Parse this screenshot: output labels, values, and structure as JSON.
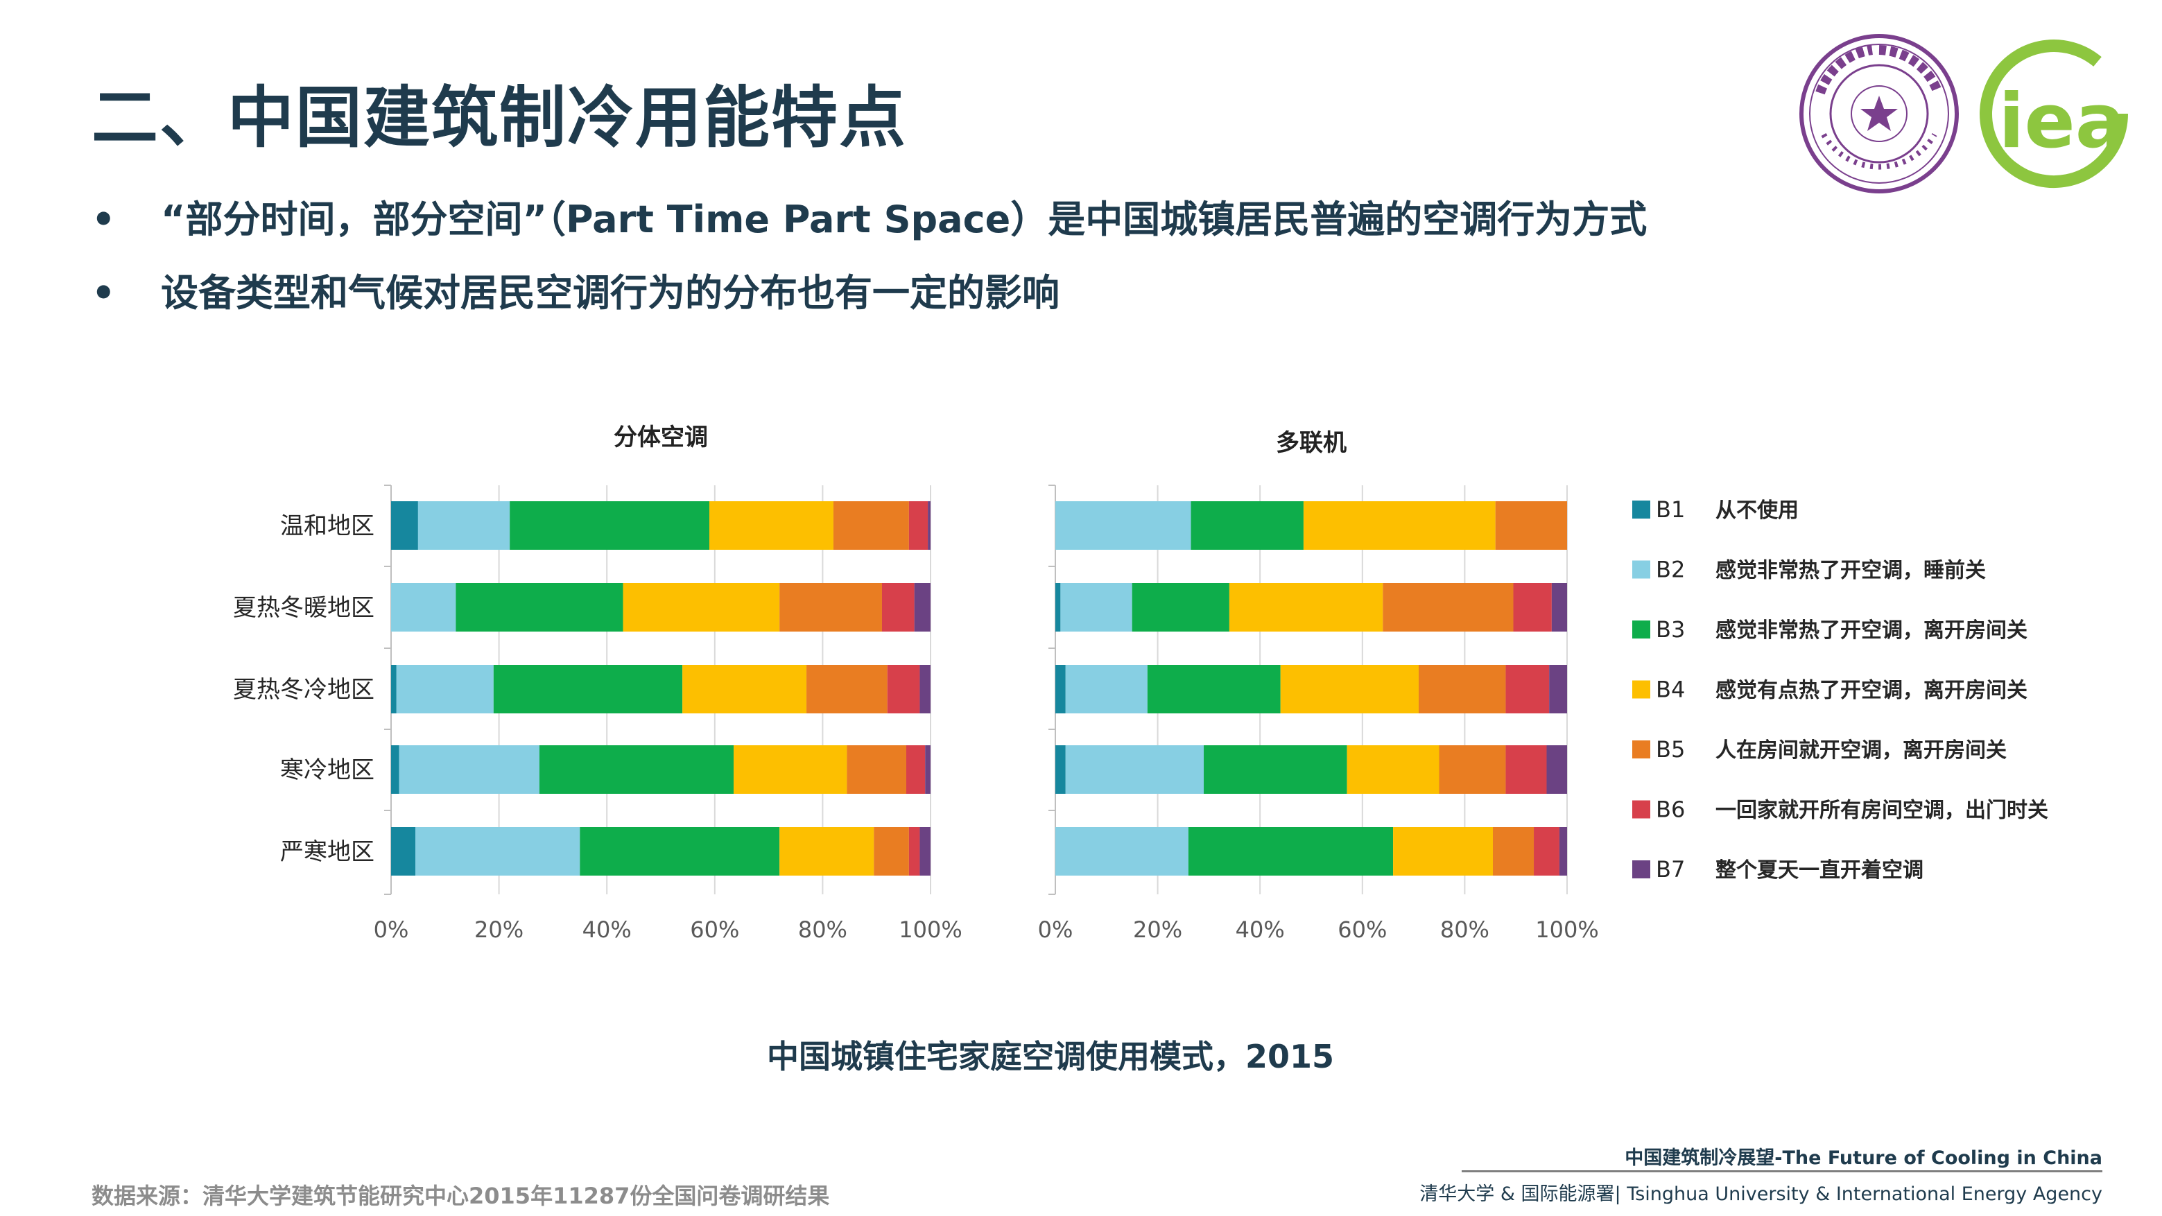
{
  "slide": {
    "title": "二、中国建筑制冷用能特点",
    "bullets": [
      "“部分时间，部分空间”（Part Time Part Space）是中国城镇居民普遍的空调行为方式",
      "设备类型和气候对居民空调行为的分布也有一定的影响"
    ],
    "bullet_symbol": "•",
    "caption": "中国城镇住宅家庭空调使用模式，2015",
    "source": "数据来源：清华大学建筑节能研究中心2015年11287份全国问卷调研结果",
    "footer_top": "中国建筑制冷展望-The Future of Cooling in China",
    "footer_bottom": "清华大学 & 国际能源署| Tsinghua University & International Energy Agency",
    "logo_right": "iea"
  },
  "colors": {
    "title": "#1f3b4d",
    "B1": "#16879e",
    "B2": "#87cfe3",
    "B3": "#0ead4b",
    "B4": "#fdbf00",
    "B5": "#e97d22",
    "B6": "#d7404b",
    "B7": "#6b4283",
    "tsinghua_purple": "#7a3f8d",
    "iea_green": "#8dc63f"
  },
  "chart_data": [
    {
      "type": "bar",
      "orientation": "horizontal-stacked-100",
      "title": "分体空调",
      "categories": [
        "温和地区",
        "夏热冬暖地区",
        "夏热冬冷地区",
        "寒冷地区",
        "严寒地区"
      ],
      "xlim": [
        0,
        100
      ],
      "xticks": [
        "0%",
        "20%",
        "40%",
        "60%",
        "80%",
        "100%"
      ],
      "series": [
        {
          "name": "B1",
          "values": [
            5,
            0,
            1,
            1.5,
            4.5
          ]
        },
        {
          "name": "B2",
          "values": [
            17,
            12,
            18,
            26,
            30.5
          ]
        },
        {
          "name": "B3",
          "values": [
            37,
            31,
            35,
            36,
            37
          ]
        },
        {
          "name": "B4",
          "values": [
            23,
            29,
            23,
            21,
            17.5
          ]
        },
        {
          "name": "B5",
          "values": [
            14,
            19,
            15,
            11,
            6.5
          ]
        },
        {
          "name": "B6",
          "values": [
            3.5,
            6,
            6,
            3.5,
            2
          ]
        },
        {
          "name": "B7",
          "values": [
            0.5,
            3,
            2,
            1,
            2
          ]
        }
      ]
    },
    {
      "type": "bar",
      "orientation": "horizontal-stacked-100",
      "title": "多联机",
      "categories": [
        "温和地区",
        "夏热冬暖地区",
        "夏热冬冷地区",
        "寒冷地区",
        "严寒地区"
      ],
      "xlim": [
        0,
        100
      ],
      "xticks": [
        "0%",
        "20%",
        "40%",
        "60%",
        "80%",
        "100%"
      ],
      "series": [
        {
          "name": "B1",
          "values": [
            0,
            1,
            2,
            2,
            0
          ]
        },
        {
          "name": "B2",
          "values": [
            26.5,
            14,
            16,
            27,
            26
          ]
        },
        {
          "name": "B3",
          "values": [
            22,
            19,
            26,
            28,
            40
          ]
        },
        {
          "name": "B4",
          "values": [
            37.5,
            30,
            27,
            18,
            19.5
          ]
        },
        {
          "name": "B5",
          "values": [
            14,
            25.5,
            17,
            13,
            8
          ]
        },
        {
          "name": "B6",
          "values": [
            0,
            7.5,
            8.5,
            8,
            5
          ]
        },
        {
          "name": "B7",
          "values": [
            0,
            3,
            3.5,
            4,
            1.5
          ]
        }
      ]
    }
  ],
  "legend": [
    {
      "code": "B1",
      "label": "从不使用"
    },
    {
      "code": "B2",
      "label": "感觉非常热了开空调，睡前关"
    },
    {
      "code": "B3",
      "label": "感觉非常热了开空调，离开房间关"
    },
    {
      "code": "B4",
      "label": "感觉有点热了开空调，离开房间关"
    },
    {
      "code": "B5",
      "label": "人在房间就开空调，离开房间关"
    },
    {
      "code": "B6",
      "label": "一回家就开所有房间空调，出门时关"
    },
    {
      "code": "B7",
      "label": "整个夏天一直开着空调"
    }
  ]
}
